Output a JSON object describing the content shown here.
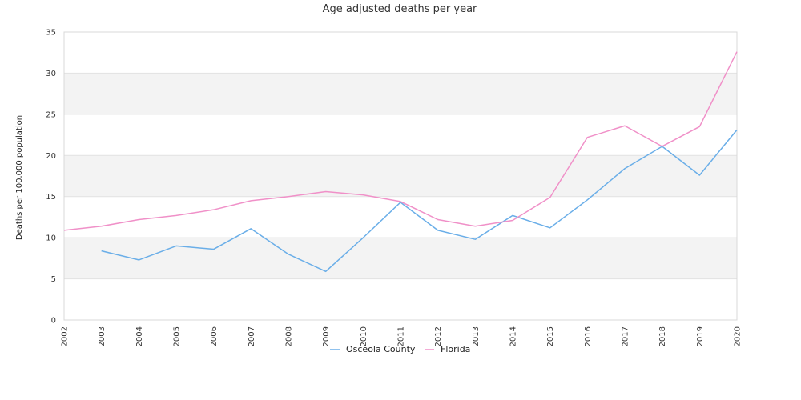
{
  "chart_data": {
    "type": "line",
    "title": "Age adjusted deaths per year",
    "xlabel": "",
    "ylabel": "Deaths per 100,000 population",
    "x": [
      "2002",
      "2003",
      "2004",
      "2005",
      "2006",
      "2007",
      "2008",
      "2009",
      "2010",
      "2011",
      "2012",
      "2013",
      "2014",
      "2015",
      "2016",
      "2017",
      "2018",
      "2019",
      "2020"
    ],
    "ylim": [
      0,
      35
    ],
    "yticks": [
      0,
      5,
      10,
      15,
      20,
      25,
      30,
      35
    ],
    "grid": true,
    "legend_position": "bottom",
    "series": [
      {
        "name": "Osceola County",
        "color": "#6aaee8",
        "values": [
          null,
          8.4,
          7.3,
          9.0,
          8.6,
          11.1,
          8.0,
          5.9,
          10.0,
          14.3,
          10.9,
          9.8,
          12.7,
          11.2,
          14.6,
          18.4,
          21.1,
          17.6,
          23.1
        ]
      },
      {
        "name": "Florida",
        "color": "#f090c8",
        "values": [
          10.9,
          11.4,
          12.2,
          12.7,
          13.4,
          14.5,
          15.0,
          15.6,
          15.2,
          14.4,
          12.2,
          11.4,
          12.1,
          14.9,
          22.2,
          23.6,
          21.1,
          23.5,
          32.6
        ]
      }
    ]
  }
}
